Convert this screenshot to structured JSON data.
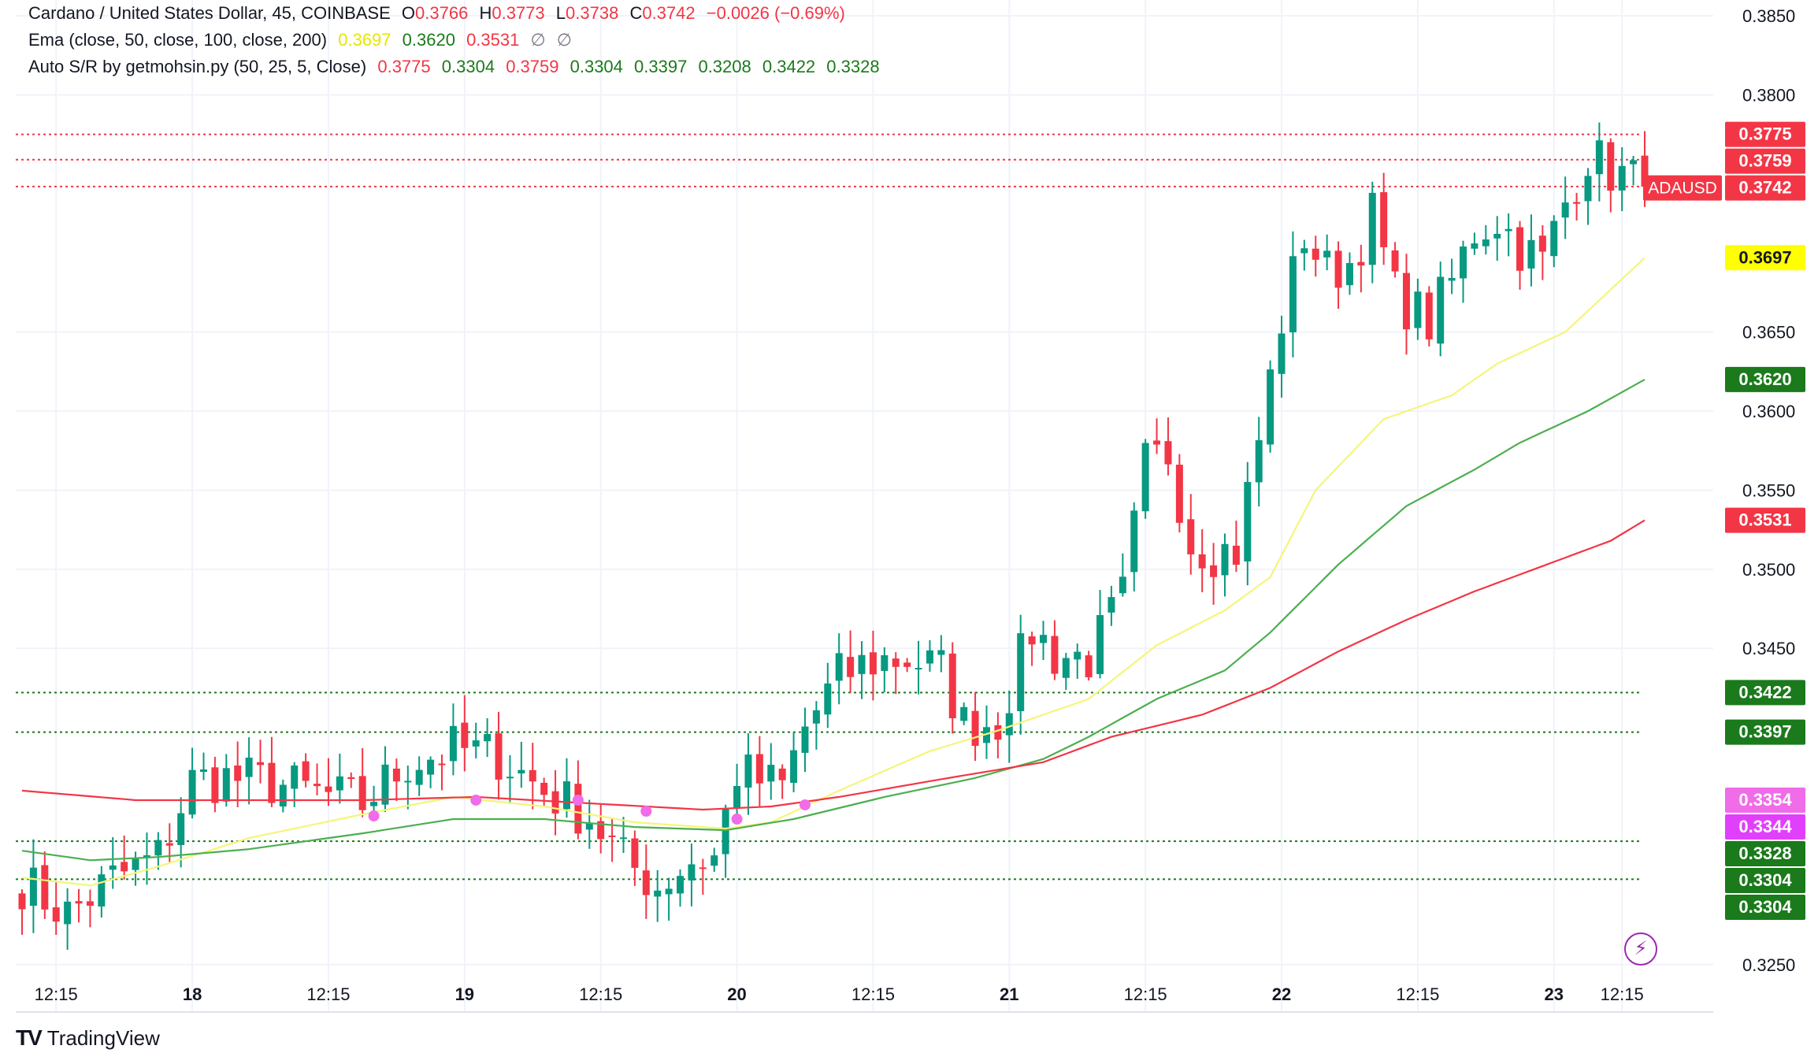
{
  "legend": {
    "symbol_title": "Cardano / United States Dollar, 45, COINBASE",
    "ohlc": {
      "o_label": "O",
      "o": "0.3766",
      "h_label": "H",
      "h": "0.3773",
      "l_label": "L",
      "l": "0.3738",
      "c_label": "C",
      "c": "0.3742",
      "change": "−0.0026 (−0.69%)"
    },
    "ema_title": "Ema (close, 50, close, 100, close, 200)",
    "ema_values": [
      "0.3697",
      "0.3620",
      "0.3531",
      "∅",
      "∅"
    ],
    "sr_title": "Auto S/R by getmohsin.py (50, 25, 5, Close)",
    "sr_values": [
      "0.3775",
      "0.3304",
      "0.3759",
      "0.3304",
      "0.3397",
      "0.3208",
      "0.3422",
      "0.3328"
    ]
  },
  "brand": {
    "name": "TradingView",
    "mark": "TV"
  },
  "icons": {
    "bolt": "lightning-icon"
  },
  "colors": {
    "up": "#089981",
    "down": "#f23645",
    "ema50": "#f5f57a",
    "ema100": "#4caf50",
    "ema200": "#f23645",
    "support": "#1b7a1b",
    "resistance": "#f23645",
    "marker": "#f06ce8"
  },
  "chart_data": {
    "type": "candlestick",
    "symbol": "ADAUSD",
    "ylim": [
      0.322,
      0.386
    ],
    "y_ticks": [
      "0.3850",
      "0.3800",
      "0.3650",
      "0.3600",
      "0.3550",
      "0.3500",
      "0.3450",
      "0.3250"
    ],
    "x_ticks": [
      {
        "label": "12:15",
        "bar": 3
      },
      {
        "label": "18",
        "bar": 15
      },
      {
        "label": "12:15",
        "bar": 27
      },
      {
        "label": "19",
        "bar": 39
      },
      {
        "label": "12:15",
        "bar": 51
      },
      {
        "label": "20",
        "bar": 63
      },
      {
        "label": "12:15",
        "bar": 75
      },
      {
        "label": "21",
        "bar": 87
      },
      {
        "label": "12:15",
        "bar": 99
      },
      {
        "label": "22",
        "bar": 111
      },
      {
        "label": "12:15",
        "bar": 123
      },
      {
        "label": "23",
        "bar": 135
      },
      {
        "label": "12:15",
        "bar": 141
      }
    ],
    "anchors": [
      [
        0,
        0.3302
      ],
      [
        4,
        0.3282
      ],
      [
        8,
        0.3304
      ],
      [
        12,
        0.3318
      ],
      [
        15,
        0.3366
      ],
      [
        18,
        0.3368
      ],
      [
        22,
        0.3365
      ],
      [
        26,
        0.3358
      ],
      [
        30,
        0.3352
      ],
      [
        34,
        0.3378
      ],
      [
        38,
        0.3386
      ],
      [
        42,
        0.3382
      ],
      [
        46,
        0.336
      ],
      [
        50,
        0.3344
      ],
      [
        53,
        0.3316
      ],
      [
        56,
        0.33
      ],
      [
        59,
        0.3316
      ],
      [
        61,
        0.3318
      ],
      [
        63,
        0.3372
      ],
      [
        65,
        0.3366
      ],
      [
        67,
        0.3362
      ],
      [
        69,
        0.34
      ],
      [
        72,
        0.3432
      ],
      [
        75,
        0.3442
      ],
      [
        78,
        0.3444
      ],
      [
        81,
        0.3436
      ],
      [
        83,
        0.3402
      ],
      [
        86,
        0.3404
      ],
      [
        89,
        0.3462
      ],
      [
        91,
        0.3446
      ],
      [
        94,
        0.3444
      ],
      [
        97,
        0.3482
      ],
      [
        99,
        0.3566
      ],
      [
        101,
        0.3574
      ],
      [
        103,
        0.3518
      ],
      [
        105,
        0.3512
      ],
      [
        107,
        0.3512
      ],
      [
        109,
        0.3582
      ],
      [
        111,
        0.3658
      ],
      [
        113,
        0.3712
      ],
      [
        115,
        0.3688
      ],
      [
        117,
        0.3694
      ],
      [
        119,
        0.3724
      ],
      [
        121,
        0.3674
      ],
      [
        124,
        0.3656
      ],
      [
        126,
        0.3682
      ],
      [
        128,
        0.3714
      ],
      [
        130,
        0.3722
      ],
      [
        132,
        0.3704
      ],
      [
        134,
        0.3694
      ],
      [
        136,
        0.3732
      ],
      [
        138,
        0.3762
      ],
      [
        140,
        0.3752
      ],
      [
        143,
        0.3742
      ]
    ],
    "ema_series": [
      {
        "name": "EMA 50",
        "anchors": [
          [
            0,
            0.3305
          ],
          [
            6,
            0.33
          ],
          [
            12,
            0.3312
          ],
          [
            20,
            0.333
          ],
          [
            30,
            0.3345
          ],
          [
            38,
            0.3356
          ],
          [
            46,
            0.335
          ],
          [
            54,
            0.334
          ],
          [
            62,
            0.3336
          ],
          [
            66,
            0.334
          ],
          [
            72,
            0.336
          ],
          [
            80,
            0.3385
          ],
          [
            86,
            0.3398
          ],
          [
            94,
            0.3418
          ],
          [
            100,
            0.3452
          ],
          [
            106,
            0.3474
          ],
          [
            110,
            0.3495
          ],
          [
            114,
            0.355
          ],
          [
            120,
            0.3595
          ],
          [
            126,
            0.361
          ],
          [
            130,
            0.363
          ],
          [
            136,
            0.365
          ],
          [
            143,
            0.3697
          ]
        ]
      },
      {
        "name": "EMA 100",
        "anchors": [
          [
            0,
            0.3322
          ],
          [
            6,
            0.3316
          ],
          [
            12,
            0.3318
          ],
          [
            20,
            0.3323
          ],
          [
            30,
            0.3333
          ],
          [
            38,
            0.3342
          ],
          [
            46,
            0.3342
          ],
          [
            54,
            0.3337
          ],
          [
            62,
            0.3335
          ],
          [
            68,
            0.3342
          ],
          [
            76,
            0.3356
          ],
          [
            84,
            0.3368
          ],
          [
            90,
            0.338
          ],
          [
            94,
            0.3394
          ],
          [
            100,
            0.3418
          ],
          [
            106,
            0.3436
          ],
          [
            110,
            0.346
          ],
          [
            116,
            0.3503
          ],
          [
            122,
            0.354
          ],
          [
            128,
            0.3563
          ],
          [
            132,
            0.358
          ],
          [
            138,
            0.36
          ],
          [
            143,
            0.362
          ]
        ]
      },
      {
        "name": "EMA 200",
        "anchors": [
          [
            0,
            0.336
          ],
          [
            10,
            0.3354
          ],
          [
            20,
            0.3354
          ],
          [
            30,
            0.3354
          ],
          [
            40,
            0.3356
          ],
          [
            50,
            0.3352
          ],
          [
            60,
            0.3348
          ],
          [
            66,
            0.335
          ],
          [
            72,
            0.3356
          ],
          [
            80,
            0.3366
          ],
          [
            90,
            0.3378
          ],
          [
            96,
            0.3394
          ],
          [
            104,
            0.3408
          ],
          [
            110,
            0.3425
          ],
          [
            116,
            0.3448
          ],
          [
            122,
            0.3468
          ],
          [
            128,
            0.3486
          ],
          [
            134,
            0.3502
          ],
          [
            140,
            0.3518
          ],
          [
            143,
            0.3531
          ]
        ]
      }
    ],
    "sr_levels": [
      {
        "value": 0.3775,
        "kind": "resistance"
      },
      {
        "value": 0.3759,
        "kind": "resistance"
      },
      {
        "value": 0.3742,
        "kind": "resistance"
      },
      {
        "value": 0.3422,
        "kind": "support"
      },
      {
        "value": 0.3397,
        "kind": "support"
      },
      {
        "value": 0.3328,
        "kind": "support"
      },
      {
        "value": 0.3304,
        "kind": "support"
      }
    ],
    "cross_markers": [
      [
        31,
        0.3344
      ],
      [
        40,
        0.3354
      ],
      [
        49,
        0.3354
      ],
      [
        55,
        0.3347
      ],
      [
        63,
        0.3342
      ],
      [
        69,
        0.3351
      ]
    ],
    "price_labels": [
      {
        "text": "0.3775",
        "value": 0.3775,
        "bg": "#f23645",
        "fg": "#ffffff"
      },
      {
        "text": "0.3759",
        "value": 0.3759,
        "bg": "#f23645",
        "fg": "#ffffff"
      },
      {
        "text": "0.3742",
        "value": 0.3742,
        "bg": "#f23645",
        "fg": "#ffffff",
        "tag": "ADAUSD"
      },
      {
        "text": "0.3697",
        "value": 0.3697,
        "bg": "#ffff00",
        "fg": "#131722"
      },
      {
        "text": "0.3620",
        "value": 0.362,
        "bg": "#1b7a1b",
        "fg": "#ffffff"
      },
      {
        "text": "0.3531",
        "value": 0.3531,
        "bg": "#f23645",
        "fg": "#ffffff"
      },
      {
        "text": "0.3422",
        "value": 0.3422,
        "bg": "#1b7a1b",
        "fg": "#ffffff"
      },
      {
        "text": "0.3397",
        "value": 0.3397,
        "bg": "#1b7a1b",
        "fg": "#ffffff"
      },
      {
        "text": "0.3354",
        "value": 0.3354,
        "bg": "#f06ce8",
        "fg": "#ffffff"
      },
      {
        "text": "0.3344",
        "value": 0.3344,
        "bg": "#e040fb",
        "fg": "#ffffff"
      },
      {
        "text": "0.3328",
        "value": 0.3328,
        "bg": "#1b7a1b",
        "fg": "#ffffff"
      },
      {
        "text": "0.3304",
        "value": 0.3304,
        "bg": "#1b7a1b",
        "fg": "#ffffff"
      },
      {
        "text": "0.3304",
        "value": 0.3304,
        "bg": "#1b7a1b",
        "fg": "#ffffff"
      }
    ]
  }
}
